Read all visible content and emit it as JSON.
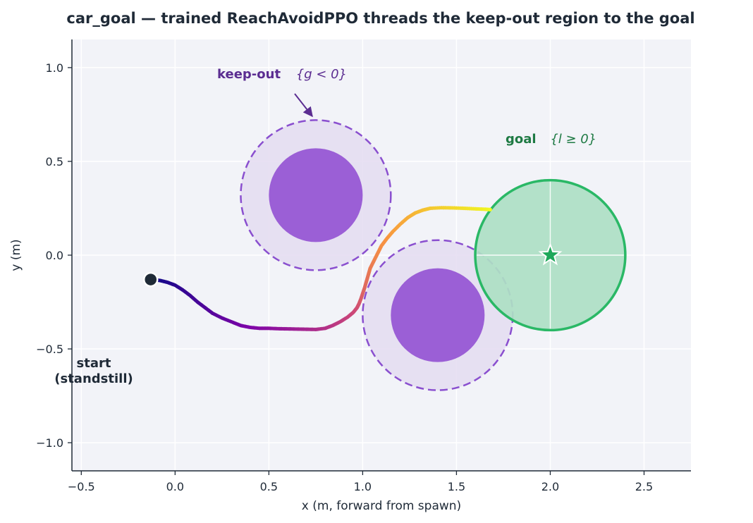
{
  "chart_data": {
    "type": "scatter",
    "title": "car_goal — trained ReachAvoidPPO threads the keep-out region to the goal",
    "xlabel": "x  (m, forward from spawn)",
    "ylabel": "y  (m)",
    "xlim": [
      -0.55,
      2.75
    ],
    "ylim": [
      -1.15,
      1.15
    ],
    "x_ticks": [
      -0.5,
      0.0,
      0.5,
      1.0,
      1.5,
      2.0,
      2.5
    ],
    "x_tick_labels": [
      "−0.5",
      "0.0",
      "0.5",
      "1.0",
      "1.5",
      "2.0",
      "2.5"
    ],
    "y_ticks": [
      -1.0,
      -0.5,
      0.0,
      0.5,
      1.0
    ],
    "y_tick_labels": [
      "−1.0",
      "−0.5",
      "0.0",
      "0.5",
      "1.0"
    ],
    "grid": true,
    "colors": {
      "plot_bg": "#f2f3f8",
      "grid": "#ffffff",
      "obstacle_core": "#9b5fd6",
      "obstacle_halo": "#e4dcf1",
      "obstacle_edge": "#8a4fcf",
      "goal_fill": "#aedfc4",
      "goal_edge": "#2ab866",
      "goal_star": "#1ea85a",
      "start_marker": "#1f2a37",
      "keepout_text": "#5b2d91",
      "goal_text": "#1f7a44"
    },
    "obstacles": [
      {
        "cx": 0.75,
        "cy": 0.32,
        "core_r": 0.25,
        "halo_r": 0.4
      },
      {
        "cx": 1.4,
        "cy": -0.32,
        "core_r": 0.25,
        "halo_r": 0.4
      }
    ],
    "goal": {
      "cx": 2.0,
      "cy": 0.0,
      "r": 0.4
    },
    "start": {
      "x": -0.13,
      "y": -0.13
    },
    "trajectory": {
      "colormap": "plasma",
      "points": [
        [
          -0.12,
          -0.13
        ],
        [
          -0.08,
          -0.135
        ],
        [
          -0.04,
          -0.145
        ],
        [
          0.0,
          -0.16
        ],
        [
          0.04,
          -0.185
        ],
        [
          0.08,
          -0.215
        ],
        [
          0.12,
          -0.25
        ],
        [
          0.16,
          -0.28
        ],
        [
          0.2,
          -0.31
        ],
        [
          0.25,
          -0.335
        ],
        [
          0.3,
          -0.355
        ],
        [
          0.35,
          -0.375
        ],
        [
          0.4,
          -0.385
        ],
        [
          0.45,
          -0.39
        ],
        [
          0.5,
          -0.39
        ],
        [
          0.55,
          -0.392
        ],
        [
          0.6,
          -0.393
        ],
        [
          0.65,
          -0.394
        ],
        [
          0.7,
          -0.395
        ],
        [
          0.75,
          -0.396
        ],
        [
          0.8,
          -0.39
        ],
        [
          0.84,
          -0.375
        ],
        [
          0.88,
          -0.355
        ],
        [
          0.92,
          -0.33
        ],
        [
          0.95,
          -0.305
        ],
        [
          0.97,
          -0.28
        ],
        [
          0.98,
          -0.26
        ],
        [
          0.99,
          -0.235
        ],
        [
          1.0,
          -0.205
        ],
        [
          1.01,
          -0.175
        ],
        [
          1.02,
          -0.14
        ],
        [
          1.03,
          -0.105
        ],
        [
          1.04,
          -0.07
        ],
        [
          1.06,
          -0.03
        ],
        [
          1.08,
          0.01
        ],
        [
          1.1,
          0.05
        ],
        [
          1.13,
          0.09
        ],
        [
          1.16,
          0.125
        ],
        [
          1.2,
          0.165
        ],
        [
          1.24,
          0.2
        ],
        [
          1.28,
          0.225
        ],
        [
          1.32,
          0.24
        ],
        [
          1.36,
          0.25
        ],
        [
          1.42,
          0.253
        ],
        [
          1.48,
          0.252
        ],
        [
          1.54,
          0.25
        ],
        [
          1.6,
          0.247
        ],
        [
          1.65,
          0.245
        ],
        [
          1.68,
          0.243
        ]
      ]
    },
    "annotations": {
      "keepout_label": "keep-out",
      "keepout_math": "{g < 0}",
      "goal_label": "goal",
      "goal_math": "{l ≥ 0}",
      "start_line1": "start",
      "start_line2": "(standstill)"
    }
  }
}
